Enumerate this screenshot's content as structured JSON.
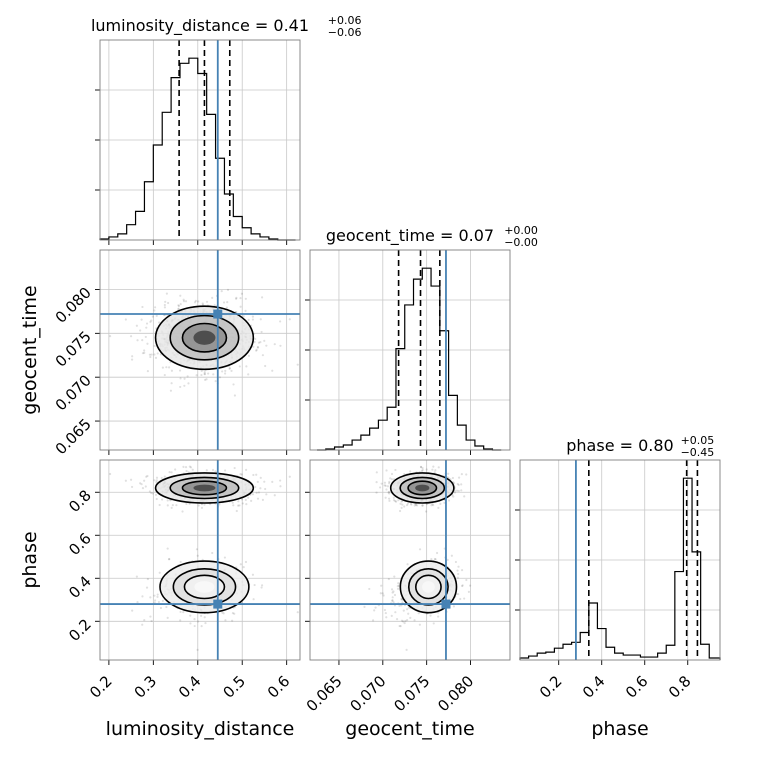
{
  "chart_data": {
    "type": "corner",
    "parameters": [
      "luminosity_distance",
      "geocent_time",
      "phase"
    ],
    "truths": [
      0.445,
      0.0772,
      0.28
    ],
    "truth_color": "#4682b4",
    "hist_color": "#000000",
    "quantile_color": "#000000",
    "grid": true,
    "titles": [
      {
        "name": "luminosity_distance",
        "value": "0.41",
        "plus": "+0.06",
        "minus": "−0.06"
      },
      {
        "name": "geocent_time",
        "value": "0.07",
        "plus": "+0.00",
        "minus": "−0.00"
      },
      {
        "name": "phase",
        "value": "0.80",
        "plus": "+0.05",
        "minus": "−0.45"
      }
    ],
    "axes": {
      "luminosity_distance": {
        "range": [
          0.18,
          0.63
        ],
        "ticks": [
          0.2,
          0.3,
          0.4,
          0.5,
          0.6
        ],
        "tick_labels": [
          "0.2",
          "0.3",
          "0.4",
          "0.5",
          "0.6"
        ]
      },
      "geocent_time": {
        "range": [
          0.0617,
          0.0845
        ],
        "ticks": [
          0.065,
          0.07,
          0.075,
          0.08
        ],
        "tick_labels": [
          "0.065",
          "0.070",
          "0.075",
          "0.080"
        ]
      },
      "phase": {
        "range": [
          0.02,
          0.95
        ],
        "ticks": [
          0.2,
          0.4,
          0.6,
          0.8
        ],
        "tick_labels": [
          "0.2",
          "0.4",
          "0.6",
          "0.8"
        ]
      }
    },
    "quantiles": {
      "luminosity_distance": [
        0.358,
        0.415,
        0.472
      ],
      "geocent_time": [
        0.0718,
        0.0743,
        0.0765
      ],
      "phase": [
        0.34,
        0.795,
        0.845
      ]
    },
    "histograms": {
      "luminosity_distance": {
        "edges": [
          0.18,
          0.2,
          0.22,
          0.24,
          0.26,
          0.28,
          0.3,
          0.32,
          0.34,
          0.36,
          0.38,
          0.4,
          0.42,
          0.44,
          0.46,
          0.48,
          0.5,
          0.52,
          0.54,
          0.56,
          0.58,
          0.6,
          0.62
        ],
        "counts": [
          1,
          3,
          6,
          15,
          28,
          57,
          93,
          125,
          159,
          173,
          178,
          163,
          123,
          80,
          45,
          23,
          12,
          6,
          3,
          1,
          0,
          0
        ]
      },
      "geocent_time": {
        "edges": [
          0.0625,
          0.0635,
          0.0645,
          0.0655,
          0.0665,
          0.0675,
          0.0685,
          0.0695,
          0.0705,
          0.0715,
          0.0725,
          0.0735,
          0.0745,
          0.0755,
          0.0765,
          0.0775,
          0.0785,
          0.0795,
          0.0805,
          0.0815,
          0.0825,
          0.0835
        ],
        "counts": [
          0,
          1,
          3,
          5,
          10,
          15,
          22,
          30,
          43,
          102,
          146,
          172,
          183,
          165,
          120,
          55,
          25,
          10,
          4,
          1,
          0
        ]
      },
      "phase": {
        "edges": [
          0.02,
          0.06,
          0.1,
          0.14,
          0.18,
          0.22,
          0.26,
          0.3,
          0.34,
          0.38,
          0.42,
          0.46,
          0.5,
          0.54,
          0.58,
          0.62,
          0.66,
          0.7,
          0.74,
          0.78,
          0.82,
          0.86,
          0.9,
          0.95
        ],
        "counts": [
          2,
          4,
          7,
          8,
          12,
          16,
          18,
          28,
          58,
          32,
          13,
          7,
          5,
          5,
          3,
          3,
          7,
          15,
          90,
          185,
          110,
          16,
          2
        ]
      }
    },
    "scatter_lim": 1100
  }
}
